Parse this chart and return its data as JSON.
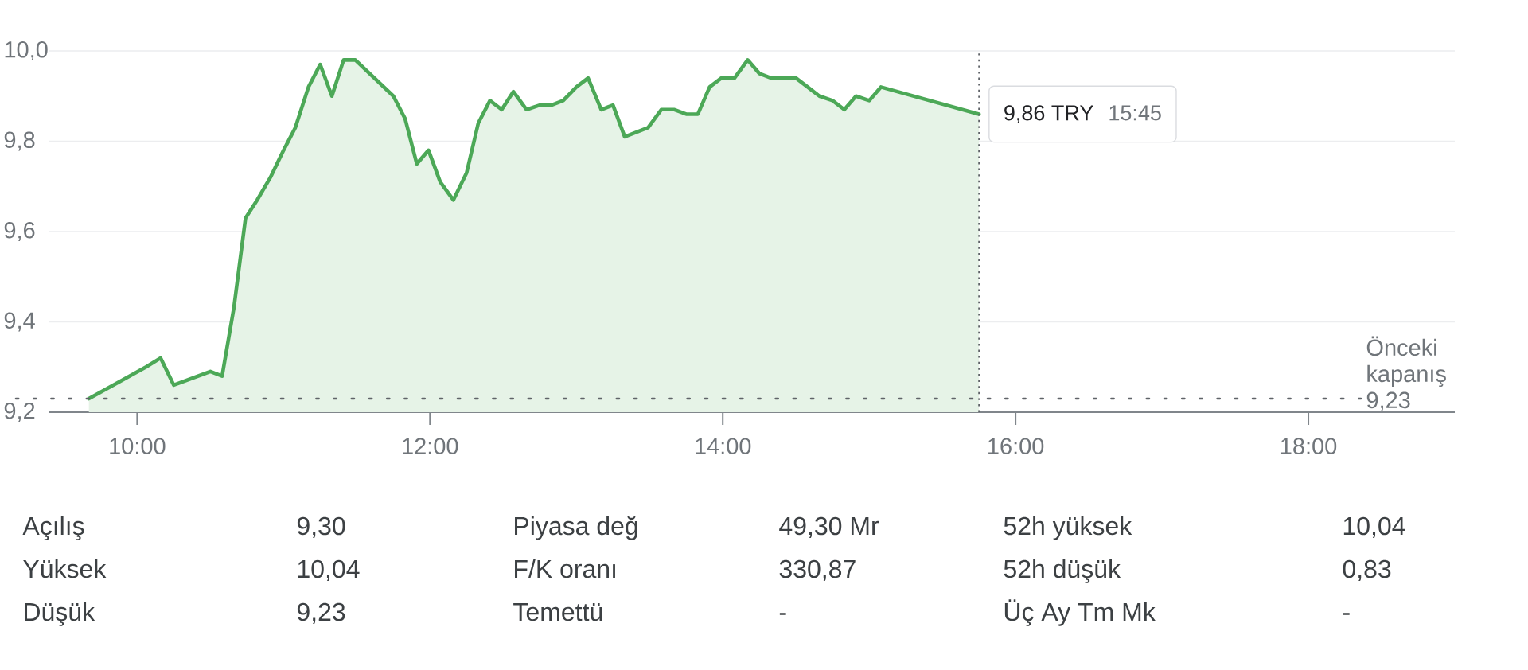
{
  "chart_data": [
    {
      "type": "area",
      "color": "#4ca857",
      "x": [
        9.67,
        10.06,
        10.16,
        10.25,
        10.5,
        10.58,
        10.66,
        10.74,
        10.82,
        10.91,
        11.0,
        11.08,
        11.17,
        11.25,
        11.33,
        11.41,
        11.49,
        11.75,
        11.83,
        11.91,
        11.99,
        12.07,
        12.16,
        12.25,
        12.33,
        12.41,
        12.49,
        12.57,
        12.66,
        12.75,
        12.83,
        12.91,
        13.0,
        13.08,
        13.17,
        13.25,
        13.33,
        13.49,
        13.58,
        13.67,
        13.75,
        13.83,
        13.91,
        13.99,
        14.08,
        14.17,
        14.25,
        14.33,
        14.5,
        14.58,
        14.66,
        14.75,
        14.83,
        14.91,
        15.0,
        15.08,
        15.75
      ],
      "values": [
        9.23,
        9.3,
        9.32,
        9.26,
        9.29,
        9.28,
        9.43,
        9.63,
        9.67,
        9.72,
        9.78,
        9.83,
        9.92,
        9.97,
        9.9,
        9.98,
        9.98,
        9.9,
        9.85,
        9.75,
        9.78,
        9.71,
        9.67,
        9.73,
        9.84,
        9.89,
        9.87,
        9.91,
        9.87,
        9.88,
        9.88,
        9.89,
        9.92,
        9.94,
        9.87,
        9.88,
        9.81,
        9.83,
        9.87,
        9.87,
        9.86,
        9.86,
        9.92,
        9.94,
        9.94,
        9.98,
        9.95,
        9.94,
        9.94,
        9.92,
        9.9,
        9.89,
        9.87,
        9.9,
        9.89,
        9.92,
        9.86
      ],
      "xlim": [
        9.4,
        19.0
      ],
      "ylim": [
        9.2,
        10.0
      ],
      "xticks": [
        {
          "value": 10,
          "label": "10:00"
        },
        {
          "value": 12,
          "label": "12:00"
        },
        {
          "value": 14,
          "label": "14:00"
        },
        {
          "value": 16,
          "label": "16:00"
        },
        {
          "value": 18,
          "label": "18:00"
        }
      ],
      "yticks": [
        {
          "value": 9.2,
          "label": "9,2"
        },
        {
          "value": 9.4,
          "label": "9,4"
        },
        {
          "value": 9.6,
          "label": "9,6"
        },
        {
          "value": 9.8,
          "label": "9,8"
        },
        {
          "value": 10.0,
          "label": "10,0"
        }
      ],
      "grid": "y",
      "ref_lines": [
        {
          "axis": "y",
          "value": 9.23,
          "label": "Önceki kapanış 9,23",
          "line_style": "dotted"
        },
        {
          "axis": "x",
          "value": 15.75,
          "line_style": "dotted"
        }
      ],
      "annotations": [
        {
          "text": "9,86 TRY",
          "x": 15.75,
          "y": 9.86
        },
        "15:45"
      ]
    },
    {
      "type": "other",
      "annotations": [
        "Açılış",
        "9,30",
        "Piyasa değ",
        "49,30 Mr",
        "52h yüksek",
        "10,04",
        "Yüksek",
        "10,04",
        "F/K oranı",
        "330,87",
        "52h düşük",
        "0,83",
        "Düşük",
        "9,23",
        "Temettü",
        "-",
        "Üç Ay Tm Mk",
        "-"
      ]
    }
  ]
}
